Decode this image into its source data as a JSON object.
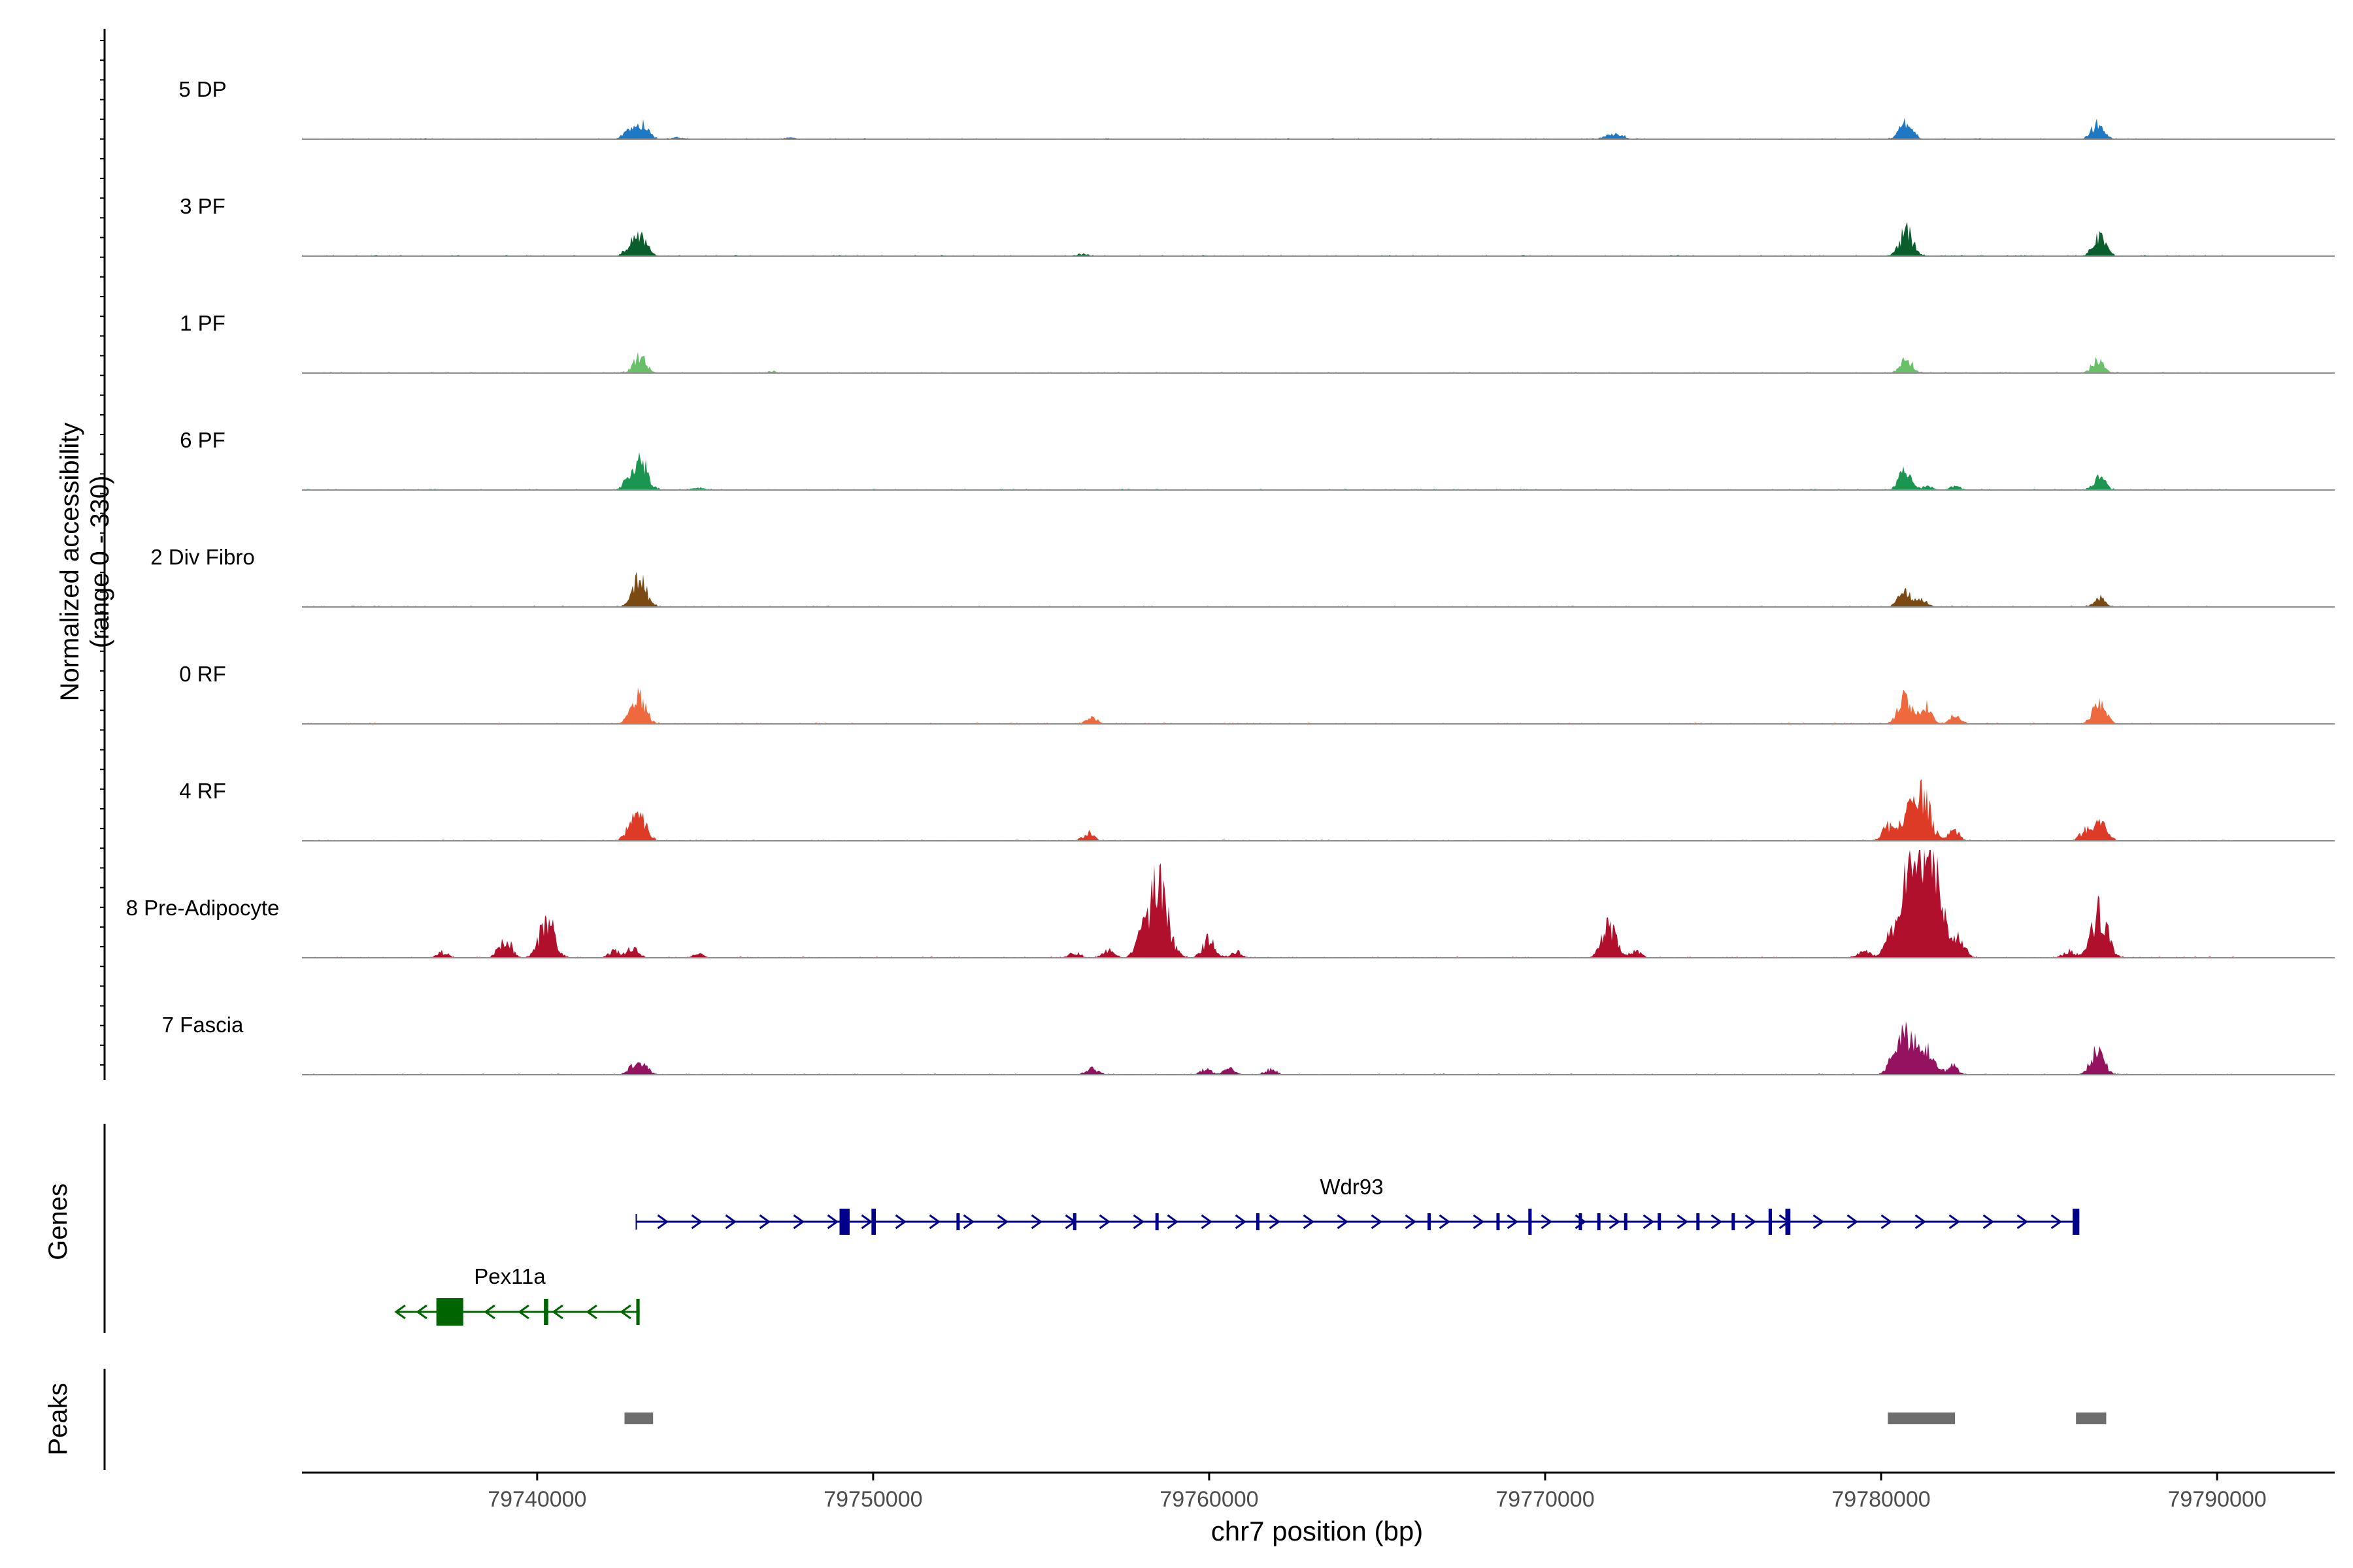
{
  "chart_data": {
    "type": "area",
    "title": "",
    "ylabel": "Normalized accessibility\n(range 0 - 330)",
    "xlabel": "chr7 position (bp)",
    "xlim": [
      79733000,
      79793500
    ],
    "x_ticks": [
      79740000,
      79750000,
      79760000,
      79770000,
      79780000,
      79790000
    ],
    "y_range": [
      0,
      330
    ],
    "grid": false,
    "tracks": [
      {
        "name": "5 DP",
        "color": "#1f78c4",
        "peaks": [
          [
            79742750,
            2.5
          ],
          [
            79743150,
            4
          ],
          [
            79744200,
            0.5
          ],
          [
            79747500,
            0.5
          ],
          [
            79771900,
            1
          ],
          [
            79772200,
            1
          ],
          [
            79780750,
            5
          ],
          [
            79786450,
            4.5
          ]
        ]
      },
      {
        "name": "3 PF",
        "color": "#0a5e2c",
        "peaks": [
          [
            79742800,
            3
          ],
          [
            79743100,
            5
          ],
          [
            79756200,
            0.6
          ],
          [
            79780750,
            7
          ],
          [
            79786500,
            5.5
          ]
        ]
      },
      {
        "name": "1 PF",
        "color": "#6abf69",
        "peaks": [
          [
            79743050,
            5
          ],
          [
            79747000,
            0.4
          ],
          [
            79780750,
            4
          ],
          [
            79786450,
            3.5
          ]
        ]
      },
      {
        "name": "6 PF",
        "color": "#1a9650",
        "peaks": [
          [
            79742750,
            3
          ],
          [
            79743100,
            7.5
          ],
          [
            79744800,
            0.6
          ],
          [
            79780700,
            5
          ],
          [
            79781400,
            1
          ],
          [
            79782200,
            1
          ],
          [
            79786500,
            3.5
          ]
        ]
      },
      {
        "name": "2 Div Fibro",
        "color": "#7b4a12",
        "peaks": [
          [
            79743050,
            8
          ],
          [
            79780700,
            4.5
          ],
          [
            79781200,
            2
          ],
          [
            79786500,
            2.5
          ]
        ]
      },
      {
        "name": "0 RF",
        "color": "#ee6a3e",
        "peaks": [
          [
            79743050,
            7
          ],
          [
            79742800,
            2
          ],
          [
            79756500,
            1.5
          ],
          [
            79780700,
            7
          ],
          [
            79781300,
            5
          ],
          [
            79782200,
            2
          ],
          [
            79786500,
            6
          ]
        ]
      },
      {
        "name": "4 RF",
        "color": "#de3b26",
        "peaks": [
          [
            79742800,
            4
          ],
          [
            79743100,
            5.5
          ],
          [
            79756400,
            2
          ],
          [
            79780200,
            4
          ],
          [
            79780800,
            8
          ],
          [
            79781250,
            12
          ],
          [
            79782150,
            3
          ],
          [
            79786100,
            3
          ],
          [
            79786550,
            5
          ]
        ]
      },
      {
        "name": "8 Pre-Adipocyte",
        "color": "#b0102c",
        "peaks": [
          [
            79737200,
            1.5
          ],
          [
            79739050,
            5
          ],
          [
            79740300,
            11
          ],
          [
            79742300,
            2
          ],
          [
            79742850,
            2.5
          ],
          [
            79744800,
            1
          ],
          [
            79756000,
            1.5
          ],
          [
            79757000,
            2
          ],
          [
            79758000,
            5
          ],
          [
            79758500,
            20
          ],
          [
            79760000,
            5
          ],
          [
            79760800,
            1.5
          ],
          [
            79771900,
            9
          ],
          [
            79772700,
            2
          ],
          [
            79779500,
            2
          ],
          [
            79780300,
            6
          ],
          [
            79780800,
            13
          ],
          [
            79781200,
            30
          ],
          [
            79781700,
            12
          ],
          [
            79782300,
            5
          ],
          [
            79785600,
            2
          ],
          [
            79786500,
            13
          ]
        ]
      },
      {
        "name": "7 Fascia",
        "color": "#94125f",
        "peaks": [
          [
            79742900,
            2.5
          ],
          [
            79743200,
            2
          ],
          [
            79756500,
            2
          ],
          [
            79759900,
            1.5
          ],
          [
            79760600,
            1.5
          ],
          [
            79761800,
            1.5
          ],
          [
            79780500,
            8
          ],
          [
            79780900,
            10
          ],
          [
            79781400,
            6
          ],
          [
            79782100,
            2.5
          ],
          [
            79786450,
            7
          ]
        ]
      }
    ],
    "genes": [
      {
        "name": "Wdr93",
        "strand": "+",
        "color": "#00008b",
        "start": 79742950,
        "end": 79785900,
        "exons": [
          [
            79749000,
            79749300
          ],
          [
            79749950,
            79750080
          ],
          [
            79752480,
            79752540
          ],
          [
            79755950,
            79756020
          ],
          [
            79758400,
            79758470
          ],
          [
            79761400,
            79761440
          ],
          [
            79766500,
            79766540
          ],
          [
            79768550,
            79768610
          ],
          [
            79769500,
            79769600
          ],
          [
            79771000,
            79771050
          ],
          [
            79771550,
            79771600
          ],
          [
            79772350,
            79772400
          ],
          [
            79773350,
            79773430
          ],
          [
            79774500,
            79774560
          ],
          [
            79775550,
            79775580
          ],
          [
            79776650,
            79776750
          ],
          [
            79777150,
            79777300
          ],
          [
            79785700,
            79785900
          ]
        ]
      },
      {
        "name": "Pex11a",
        "strand": "-",
        "color": "#006400",
        "start": 79735800,
        "end": 79743050,
        "exons": [
          [
            79737000,
            79737800
          ],
          [
            79740200,
            79740330
          ],
          [
            79742950,
            79743050
          ]
        ]
      }
    ],
    "called_peaks": [
      [
        79742600,
        79743450
      ],
      [
        79780200,
        79782200
      ],
      [
        79785800,
        79786700
      ]
    ]
  },
  "panels": {
    "genes_label": "Genes",
    "peaks_label": "Peaks"
  }
}
